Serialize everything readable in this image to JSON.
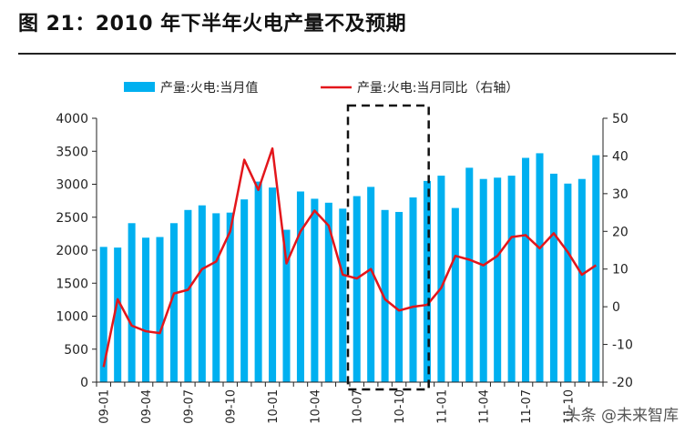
{
  "title": "图 21：2010 年下半年火电产量不及预期",
  "watermark": "头条 @未来智库",
  "colors": {
    "bar": "#00b0f0",
    "line": "#e3161b",
    "axis": "#222222",
    "box": "#111111"
  },
  "chart_data": {
    "type": "bar",
    "x": [
      "09-01",
      "09-02",
      "09-03",
      "09-04",
      "09-05",
      "09-06",
      "09-07",
      "09-08",
      "09-09",
      "09-10",
      "09-11",
      "09-12",
      "10-01",
      "10-02",
      "10-03",
      "10-04",
      "10-05",
      "10-06",
      "10-07",
      "10-08",
      "10-09",
      "10-10",
      "10-11",
      "10-12",
      "11-01",
      "11-02",
      "11-03",
      "11-04",
      "11-05",
      "11-06",
      "11-07",
      "11-08",
      "11-09",
      "11-10",
      "11-11",
      "11-12"
    ],
    "x_tick_labels": [
      "09-01",
      "09-04",
      "09-07",
      "09-10",
      "10-01",
      "10-04",
      "10-07",
      "10-10",
      "11-01",
      "11-04",
      "11-07",
      "11-10"
    ],
    "series": [
      {
        "name": "产量:火电:当月值",
        "type": "bar",
        "axis": "left",
        "values": [
          2050,
          2040,
          2410,
          2190,
          2200,
          2410,
          2610,
          2680,
          2560,
          2570,
          2770,
          3040,
          2950,
          2310,
          2890,
          2780,
          2720,
          2630,
          2820,
          2960,
          2610,
          2580,
          2800,
          3050,
          3130,
          2640,
          3250,
          3080,
          3100,
          3130,
          3400,
          3470,
          3160,
          3010,
          3080,
          3440
        ]
      },
      {
        "name": "产量:火电:当月同比（右轴）",
        "type": "line",
        "axis": "right",
        "values": [
          -16,
          2,
          -5,
          -6.5,
          -7,
          3.5,
          4.5,
          10,
          12,
          20,
          39,
          31,
          42,
          11.5,
          20,
          25.5,
          21.5,
          8.5,
          7.5,
          10,
          2,
          -1,
          0,
          0.5,
          5,
          13.5,
          12.5,
          11,
          13.5,
          18.5,
          19,
          15.5,
          19.5,
          14.5,
          8.5,
          11
        ]
      }
    ],
    "y_left": {
      "min": 0,
      "max": 4000,
      "ticks": [
        0,
        500,
        1000,
        1500,
        2000,
        2500,
        3000,
        3500,
        4000
      ]
    },
    "y_right": {
      "min": -20,
      "max": 50,
      "ticks": [
        -20,
        -10,
        0,
        10,
        20,
        30,
        40,
        50
      ]
    },
    "highlight_box": {
      "from": "10-07",
      "to": "10-12"
    },
    "legend_placement": "top-center",
    "grid": false
  }
}
